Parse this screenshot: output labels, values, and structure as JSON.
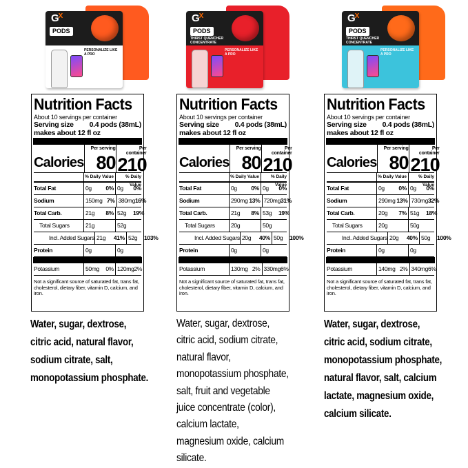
{
  "products": [
    {
      "pack": {
        "brand": "G",
        "brand_mark": "X",
        "name": "PODS",
        "subtitle": "",
        "tag": "PERSONALIZE LIKE A PRO",
        "box_color": "#1c1c1c",
        "accent_color": "#ff5a1f",
        "bottom_color": "#ffffff",
        "bottle_color": "#f2f2f2"
      },
      "nutrition": {
        "title": "Nutrition Facts",
        "servings": "About 10 servings per container",
        "serving_size_label": "Serving size",
        "serving_size_value": "0.4 pods (38mL)",
        "makes": "makes about 12 fl oz",
        "per_serving": "Per serving",
        "per_container": "Per container",
        "calories_label": "Calories",
        "calories_serving": "80",
        "calories_container": "210",
        "dv_label_1": "% Daily Value",
        "dv_label_2": "% Daily Value",
        "rows": [
          {
            "name": "Total Fat",
            "amt1": "0g",
            "pct1": "0%",
            "amt2": "0g",
            "pct2": "0%"
          },
          {
            "name": "Sodium",
            "amt1": "150mg",
            "pct1": "7%",
            "amt2": "380mg",
            "pct2": "16%"
          },
          {
            "name": "Total Carb.",
            "amt1": "21g",
            "pct1": "8%",
            "amt2": "52g",
            "pct2": "19%"
          },
          {
            "name": "Total Sugars",
            "amt1": "21g",
            "pct1": "",
            "amt2": "52g",
            "pct2": ""
          },
          {
            "name": "Incl. Added Sugars",
            "amt1": "21g",
            "pct1": "41%",
            "amt2": "52g",
            "pct2": "103%"
          },
          {
            "name": "Protein",
            "amt1": "0g",
            "pct1": "",
            "amt2": "0g",
            "pct2": ""
          },
          {
            "name": "Potassium",
            "amt1": "50mg",
            "pct1": "0%",
            "amt2": "120mg",
            "pct2": "2%"
          }
        ],
        "footnote": "Not a significant source of saturated fat, trans fat, cholesterol, dietary fiber, vitamin D, calcium, and iron."
      },
      "ingredients": "Water, sugar, dextrose,\ncitric acid, natural flavor,\nsodium citrate, salt,\nmonopotassium phosphate."
    },
    {
      "pack": {
        "brand": "G",
        "brand_mark": "X",
        "name": "PODS",
        "subtitle": "THIRST QUENCHER CONCENTRATE",
        "tag": "PERSONALIZE LIKE A PRO",
        "box_color": "#1c1c1c",
        "accent_color": "#e8202a",
        "bottom_color": "#e8202a",
        "bottle_color": "#f6d3d3"
      },
      "nutrition": {
        "title": "Nutrition Facts",
        "servings": "About 10 servings per container",
        "serving_size_label": "Serving size",
        "serving_size_value": "0.4 pods (38mL)",
        "makes": "makes about 12 fl oz",
        "per_serving": "Per serving",
        "per_container": "Per container",
        "calories_label": "Calories",
        "calories_serving": "80",
        "calories_container": "210",
        "dv_label_1": "% Daily Value",
        "dv_label_2": "% Daily Value",
        "rows": [
          {
            "name": "Total Fat",
            "amt1": "0g",
            "pct1": "0%",
            "amt2": "0g",
            "pct2": "0%"
          },
          {
            "name": "Sodium",
            "amt1": "290mg",
            "pct1": "13%",
            "amt2": "720mg",
            "pct2": "31%"
          },
          {
            "name": "Total Carb.",
            "amt1": "21g",
            "pct1": "8%",
            "amt2": "53g",
            "pct2": "19%"
          },
          {
            "name": "Total Sugars",
            "amt1": "20g",
            "pct1": "",
            "amt2": "50g",
            "pct2": ""
          },
          {
            "name": "Incl. Added Sugars",
            "amt1": "20g",
            "pct1": "40%",
            "amt2": "50g",
            "pct2": "100%"
          },
          {
            "name": "Protein",
            "amt1": "0g",
            "pct1": "",
            "amt2": "0g",
            "pct2": ""
          },
          {
            "name": "Potassium",
            "amt1": "130mg",
            "pct1": "2%",
            "amt2": "330mg",
            "pct2": "6%"
          }
        ],
        "footnote": "Not a significant source of saturated fat, trans fat, cholesterol, dietary fiber, vitamin D, calcium, and iron."
      },
      "ingredients": "Water, sugar, dextrose,\ncitric acid, sodium citrate,\nnatural flavor,\nmonopotassium phosphate,\nsalt, fruit and vegetable\njuice concentrate (color),\ncalcium lactate,\nmagnesium oxide, calcium\nsilicate."
    },
    {
      "pack": {
        "brand": "G",
        "brand_mark": "X",
        "name": "PODS",
        "subtitle": "THIRST QUENCHER CONCENTRATE",
        "tag": "PERSONALIZE LIKE A PRO",
        "box_color": "#1c1c1c",
        "accent_color": "#ff6a1a",
        "bottom_color": "#3cc3dc",
        "bottle_color": "#dff3f7"
      },
      "nutrition": {
        "title": "Nutrition Facts",
        "servings": "About 10 servings per container",
        "serving_size_label": "Serving size",
        "serving_size_value": "0.4 pods (38mL)",
        "makes": "makes about 12 fl oz",
        "per_serving": "Per serving",
        "per_container": "Per container",
        "calories_label": "Calories",
        "calories_serving": "80",
        "calories_container": "210",
        "dv_label_1": "% Daily Value",
        "dv_label_2": "% Daily Value",
        "rows": [
          {
            "name": "Total Fat",
            "amt1": "0g",
            "pct1": "0%",
            "amt2": "0g",
            "pct2": "0%"
          },
          {
            "name": "Sodium",
            "amt1": "290mg",
            "pct1": "13%",
            "amt2": "730mg",
            "pct2": "32%"
          },
          {
            "name": "Total Carb.",
            "amt1": "20g",
            "pct1": "7%",
            "amt2": "51g",
            "pct2": "18%"
          },
          {
            "name": "Total Sugars",
            "amt1": "20g",
            "pct1": "",
            "amt2": "50g",
            "pct2": ""
          },
          {
            "name": "Incl. Added Sugars",
            "amt1": "20g",
            "pct1": "40%",
            "amt2": "50g",
            "pct2": "100%"
          },
          {
            "name": "Protein",
            "amt1": "0g",
            "pct1": "",
            "amt2": "0g",
            "pct2": ""
          },
          {
            "name": "Potassium",
            "amt1": "140mg",
            "pct1": "2%",
            "amt2": "340mg",
            "pct2": "6%"
          }
        ],
        "footnote": "Not a significant source of saturated fat, trans fat, cholesterol, dietary fiber, vitamin D, calcium, and iron."
      },
      "ingredients": "Water, sugar, dextrose,\ncitric acid, sodium citrate,\nmonopotassium phosphate,\nnatural flavor, salt, calcium\nlactate, magnesium oxide,\ncalcium silicate."
    }
  ]
}
